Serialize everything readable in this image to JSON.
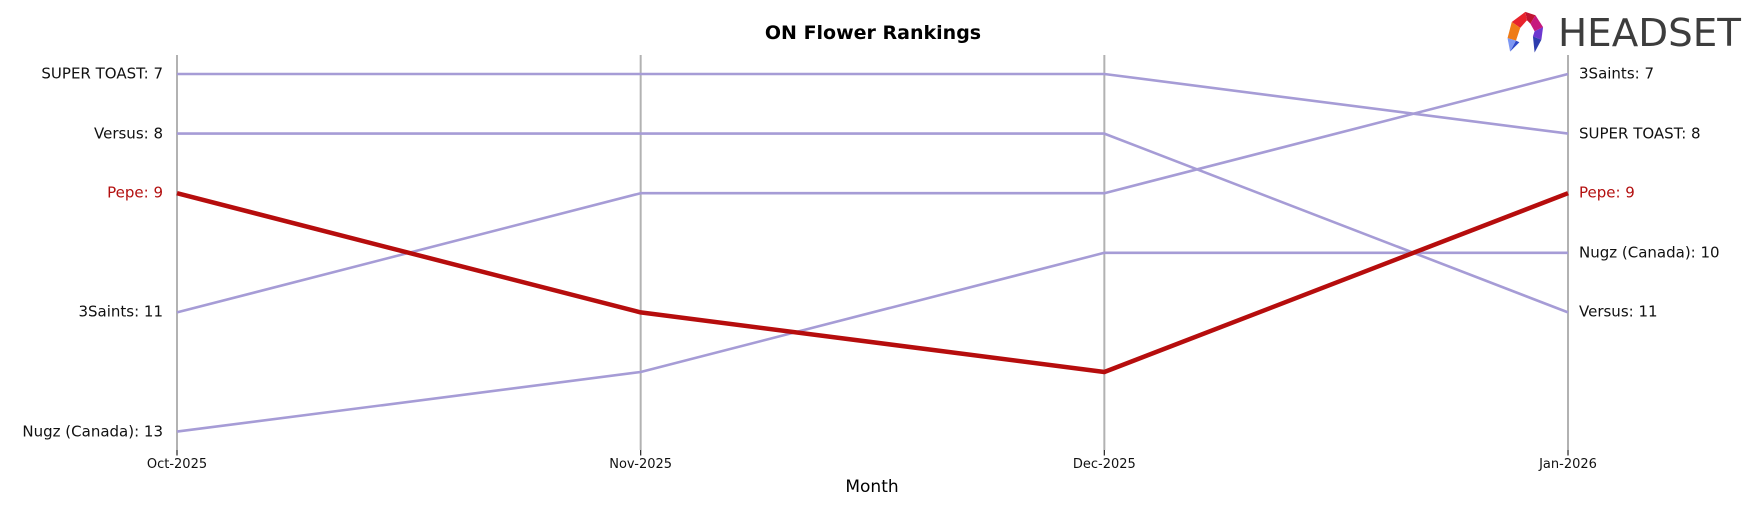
{
  "logo": {
    "text": "HEADSET"
  },
  "chart_data": {
    "type": "line",
    "subtype": "bump-ranking",
    "title": "ON Flower Rankings",
    "xlabel": "Month",
    "ylabel": "",
    "categories": [
      "Oct-2025",
      "Nov-2025",
      "Dec-2025",
      "Jan-2026"
    ],
    "y_axis": {
      "inverted": true,
      "rank_top": 7,
      "rank_bottom": 13,
      "tick_labels_hidden": true
    },
    "grid": "vertical-gridlines-only",
    "legend": "none",
    "line_color_default": "#a69cd6",
    "line_color_highlight": "#b60d0d",
    "gridline_color": "#b2b2b2",
    "series": [
      {
        "name": "SUPER TOAST",
        "values": [
          7,
          7,
          7,
          8
        ],
        "highlighted": false,
        "left_label": "SUPER TOAST: 7",
        "right_label": "SUPER TOAST: 8"
      },
      {
        "name": "Versus",
        "values": [
          8,
          8,
          8,
          11
        ],
        "highlighted": false,
        "left_label": "Versus: 8",
        "right_label": "Versus: 11"
      },
      {
        "name": "3Saints",
        "values": [
          11,
          9,
          9,
          7
        ],
        "highlighted": false,
        "left_label": "3Saints: 11",
        "right_label": "3Saints: 7"
      },
      {
        "name": "Nugz (Canada)",
        "values": [
          13,
          12,
          10,
          10
        ],
        "highlighted": false,
        "left_label": "Nugz (Canada): 13",
        "right_label": "Nugz (Canada): 10"
      },
      {
        "name": "Pepe",
        "values": [
          9,
          11,
          12,
          9
        ],
        "highlighted": true,
        "left_label": "Pepe: 9",
        "right_label": "Pepe: 9"
      }
    ]
  }
}
